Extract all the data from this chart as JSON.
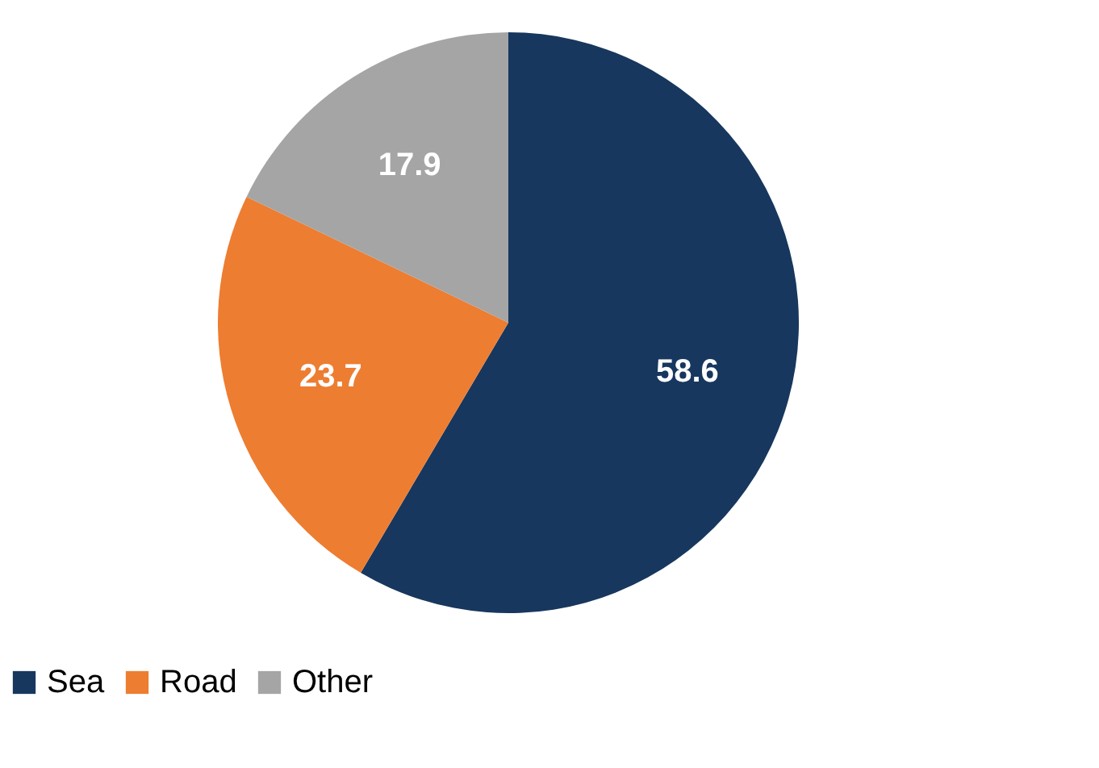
{
  "chart_data": {
    "type": "pie",
    "categories": [
      "Sea",
      "Road",
      "Other"
    ],
    "values": [
      58.6,
      23.7,
      17.9
    ],
    "colors": [
      "#17375e",
      "#ed7d31",
      "#a5a5a5"
    ],
    "data_labels": true,
    "legend": "bottom"
  }
}
